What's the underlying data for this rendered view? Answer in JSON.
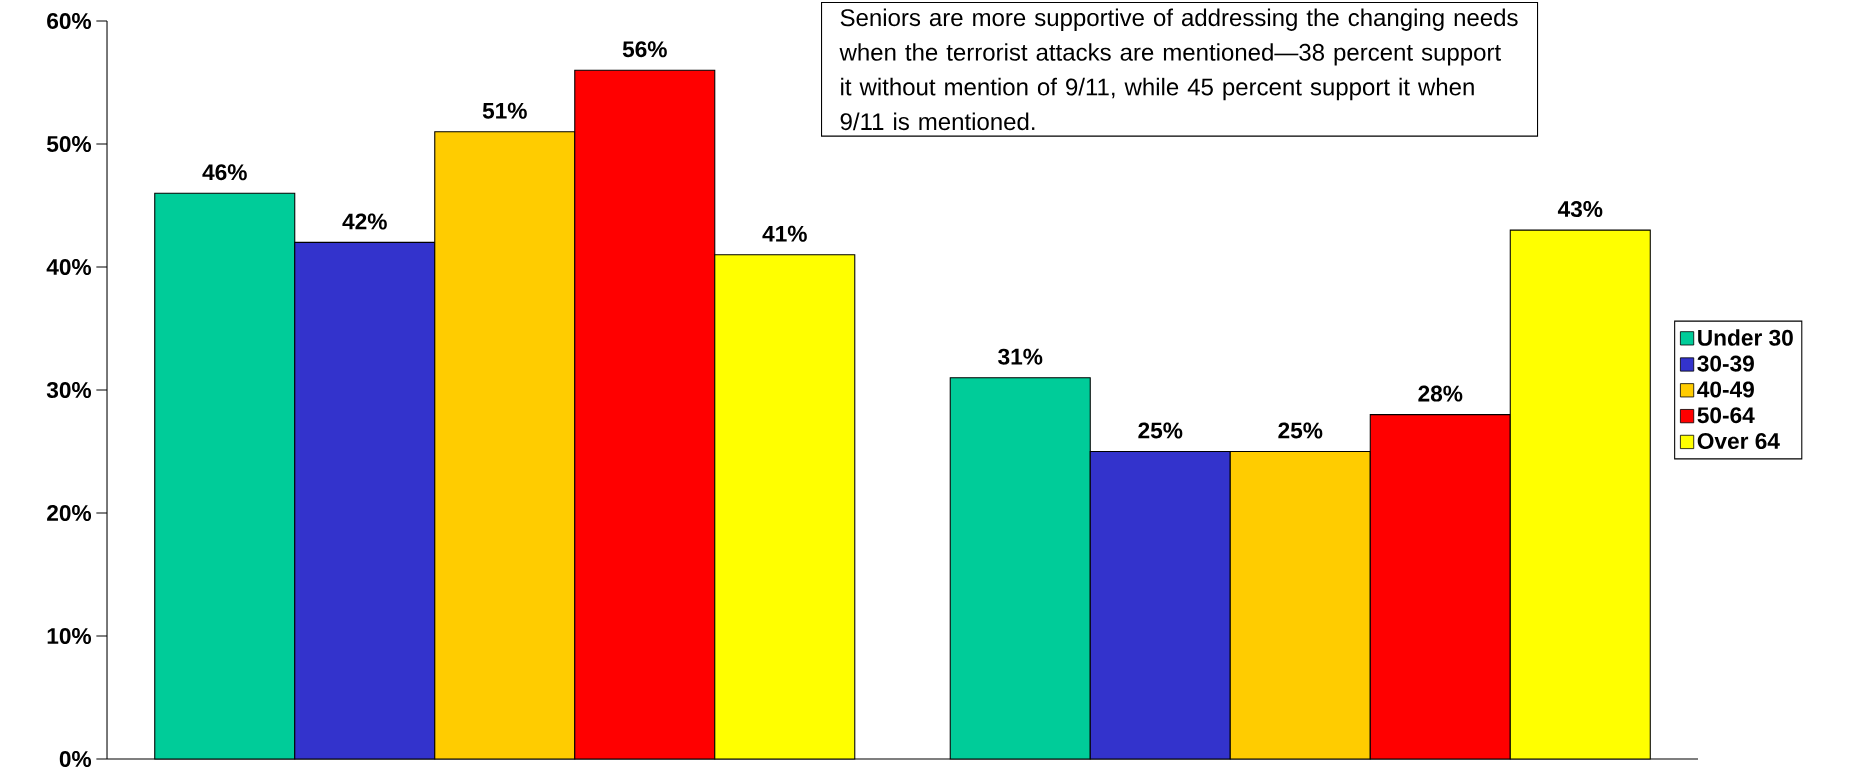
{
  "chart_data": {
    "type": "bar",
    "categories": [
      null,
      null
    ],
    "series": [
      {
        "name": "Under 30",
        "color": "#00cc99",
        "values": [
          46,
          31
        ],
        "value_labels": [
          "46%",
          "31%"
        ]
      },
      {
        "name": "30-39",
        "color": "#3333cc",
        "values": [
          42,
          25
        ],
        "value_labels": [
          "42%",
          "25%"
        ]
      },
      {
        "name": "40-49",
        "color": "#ffcc00",
        "values": [
          51,
          25
        ],
        "value_labels": [
          "51%",
          "25%"
        ]
      },
      {
        "name": "50-64",
        "color": "#ff0000",
        "values": [
          56,
          28
        ],
        "value_labels": [
          "56%",
          "28%"
        ]
      },
      {
        "name": "Over 64",
        "color": "#ffff00",
        "values": [
          41,
          43
        ],
        "value_labels": [
          "41%",
          "43%"
        ]
      }
    ],
    "ylim": [
      0,
      60
    ],
    "yticks": [
      {
        "value": 0,
        "label": "0%"
      },
      {
        "value": 10,
        "label": "10%"
      },
      {
        "value": 20,
        "label": "20%"
      },
      {
        "value": 30,
        "label": "30%"
      },
      {
        "value": 40,
        "label": "40%"
      },
      {
        "value": 50,
        "label": "50%"
      },
      {
        "value": 60,
        "label": "60%"
      }
    ],
    "legend": "right",
    "annotations": [
      "Seniors are more supportive of addressing the changing needs when the terrorist attacks are mentioned—38 percent support it without mention of 9/11, while 45 percent support it when 9/11 is mentioned."
    ]
  }
}
